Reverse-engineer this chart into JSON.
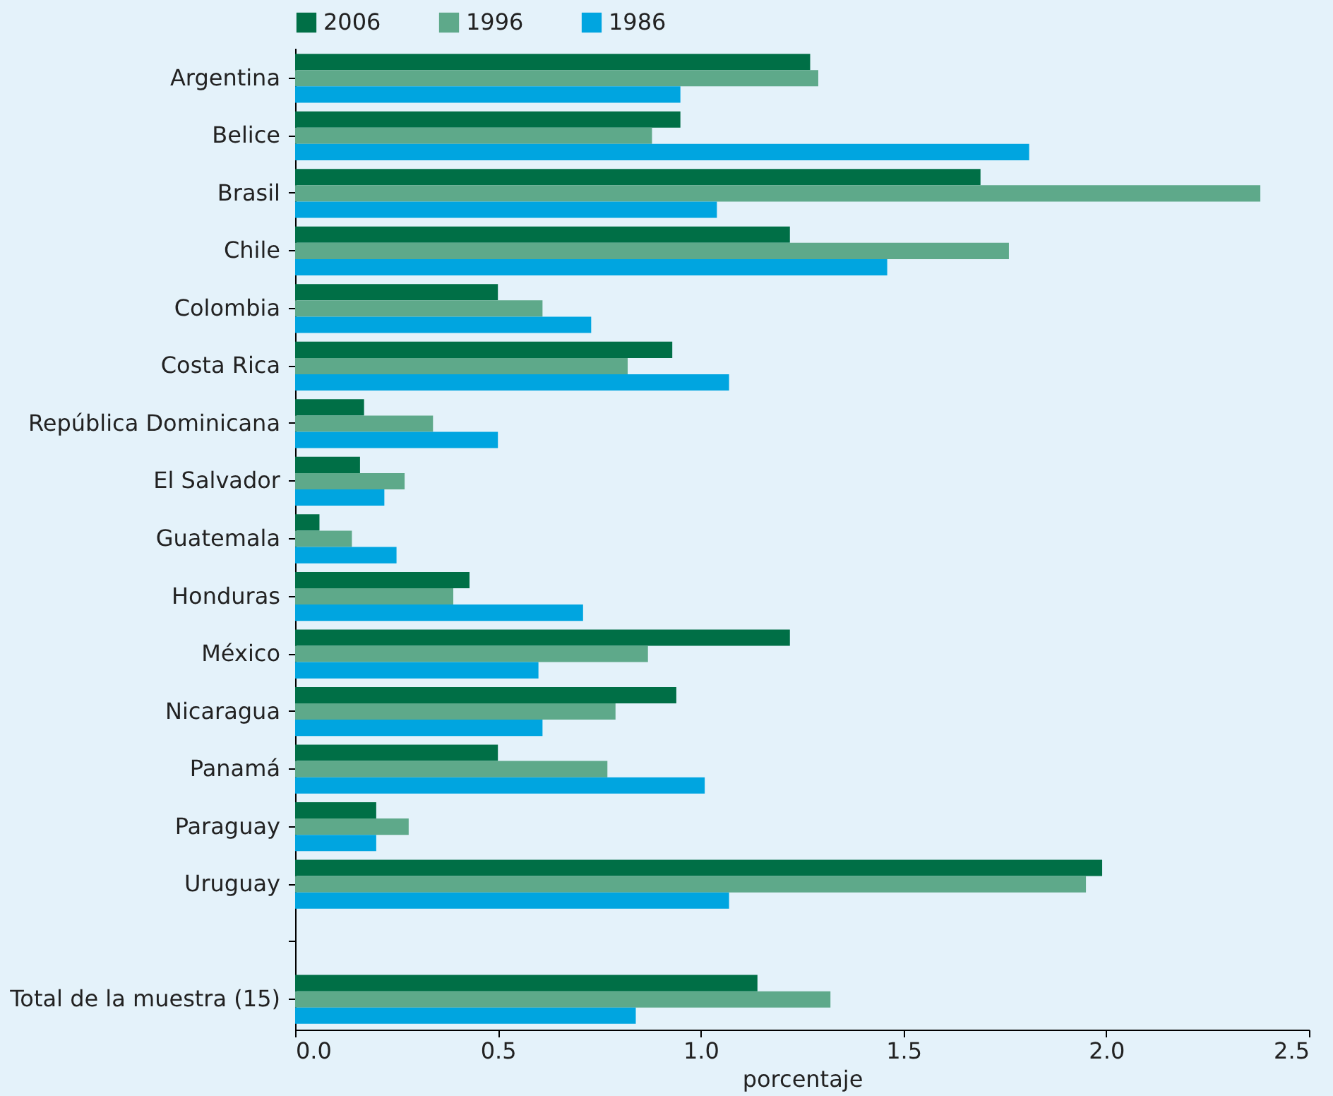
{
  "chart_data": {
    "type": "bar",
    "orientation": "horizontal",
    "xlabel": "porcentaje",
    "legend": "top",
    "categories": [
      "Argentina",
      "Belice",
      "Brasil",
      "Chile",
      "Colombia",
      "Costa Rica",
      "República Dominicana",
      "El Salvador",
      "Guatemala",
      "Honduras",
      "México",
      "Nicaragua",
      "Panamá",
      "Paraguay",
      "Uruguay",
      null,
      "Total de la muestra (15)"
    ],
    "series": [
      {
        "name": "2006",
        "color": "#006f46",
        "values": [
          1.27,
          0.95,
          1.69,
          1.22,
          0.5,
          0.93,
          0.17,
          0.16,
          0.06,
          0.43,
          1.22,
          0.94,
          0.5,
          0.2,
          1.99,
          null,
          1.14
        ]
      },
      {
        "name": "1996",
        "color": "#5ea98a",
        "values": [
          1.29,
          0.88,
          2.38,
          1.76,
          0.61,
          0.82,
          0.34,
          0.27,
          0.14,
          0.39,
          0.87,
          0.79,
          0.77,
          0.28,
          1.95,
          null,
          1.32
        ]
      },
      {
        "name": "1986",
        "color": "#00a5e0",
        "values": [
          0.95,
          1.81,
          1.04,
          1.46,
          0.73,
          1.07,
          0.5,
          0.22,
          0.25,
          0.71,
          0.6,
          0.61,
          1.01,
          0.2,
          1.07,
          null,
          0.84
        ]
      }
    ],
    "xlim": [
      0,
      2.5
    ],
    "xticks": [
      {
        "value": 0,
        "label": "0.0"
      },
      {
        "value": 0.5,
        "label": "0.5"
      },
      {
        "value": 1,
        "label": "1.0"
      },
      {
        "value": 1.5,
        "label": "1.5"
      },
      {
        "value": 2,
        "label": "2.0"
      },
      {
        "value": 2.5,
        "label": "2.5"
      }
    ],
    "grid": false
  }
}
